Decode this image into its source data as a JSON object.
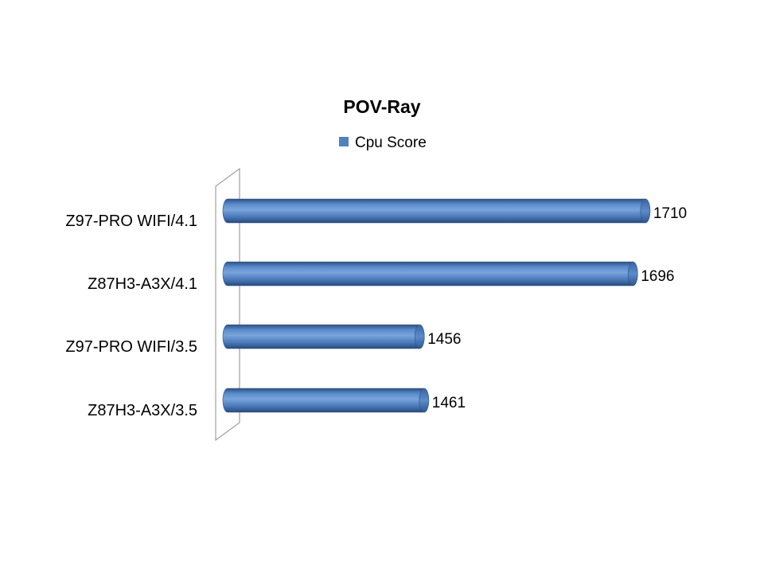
{
  "chart_data": {
    "type": "bar",
    "orientation": "horizontal",
    "style": "3d-cylinder",
    "title": "POV-Ray",
    "categories": [
      "Z97-PRO WIFI/4.1",
      "Z87H3-A3X/4.1",
      "Z97-PRO WIFI/3.5",
      "Z87H3-A3X/3.5"
    ],
    "series": [
      {
        "name": "Cpu Score",
        "values": [
          1710,
          1696,
          1456,
          1461
        ],
        "color": "#4F81BD"
      }
    ],
    "data_labels": [
      "1710",
      "1696",
      "1456",
      "1461"
    ],
    "xlabel": "",
    "ylabel": "",
    "xlim": [
      1240,
      1720
    ],
    "grid": false,
    "legend": "top"
  }
}
